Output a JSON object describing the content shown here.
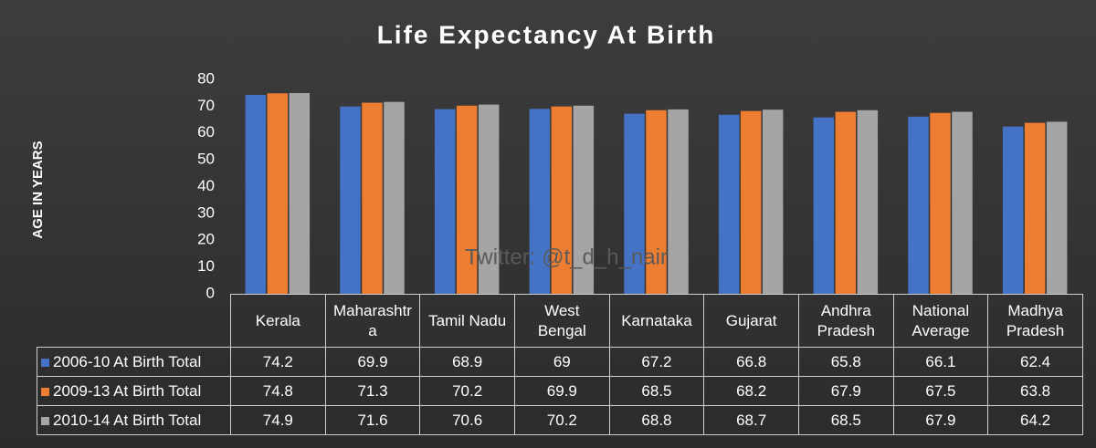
{
  "chart_data": {
    "type": "bar",
    "title": "Life Expectancy At Birth",
    "y_label": "AGE IN YEARS",
    "watermark": "Twitter: @t_d_h_nair",
    "categories": [
      "Kerala",
      "Maharashtra",
      "Tamil Nadu",
      "West Bengal",
      "Karnataka",
      "Gujarat",
      "Andhra Pradesh",
      "National Average",
      "Madhya Pradesh"
    ],
    "series": [
      {
        "name": "2006-10 At Birth Total",
        "color": "#4472c4",
        "values": [
          74.2,
          69.9,
          68.9,
          69,
          67.2,
          66.8,
          65.8,
          66.1,
          62.4
        ]
      },
      {
        "name": "2009-13 At Birth Total",
        "color": "#ed7d31",
        "values": [
          74.8,
          71.3,
          70.2,
          69.9,
          68.5,
          68.2,
          67.9,
          67.5,
          63.8
        ]
      },
      {
        "name": "2010-14 At Birth Total",
        "color": "#a5a5a5",
        "values": [
          74.9,
          71.6,
          70.6,
          70.2,
          68.8,
          68.7,
          68.5,
          67.9,
          64.2
        ]
      }
    ],
    "ylim": [
      0,
      80
    ],
    "yticks": [
      0,
      10,
      20,
      30,
      40,
      50,
      60,
      70,
      80
    ],
    "grid": false,
    "legend": "table"
  }
}
